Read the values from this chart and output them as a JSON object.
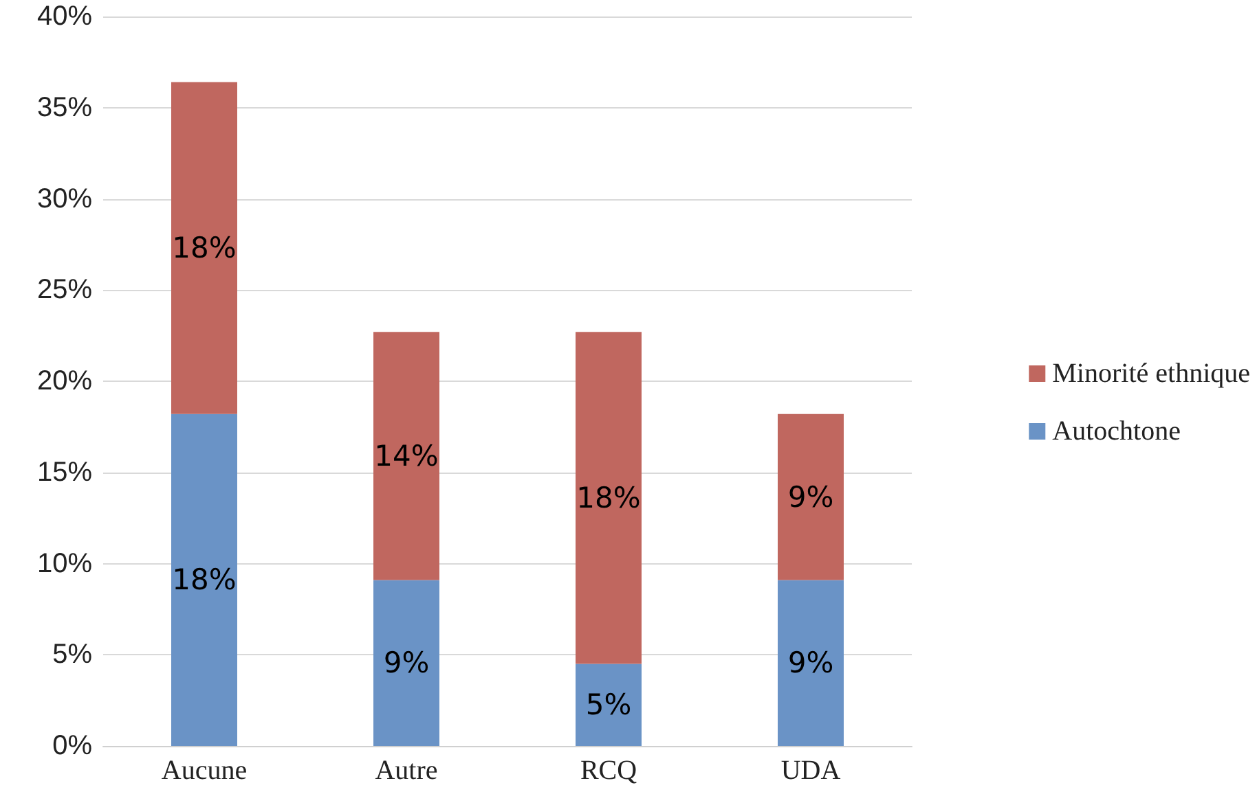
{
  "chart_data": {
    "type": "bar",
    "stacked": true,
    "categories": [
      "Aucune",
      "Autre",
      "RCQ",
      "UDA"
    ],
    "series": [
      {
        "name": "Autochtone",
        "color": "#6a93c6",
        "values": [
          18.2,
          9.1,
          4.5,
          9.1
        ],
        "value_labels": [
          "18%",
          "9%",
          "5%",
          "9%"
        ]
      },
      {
        "name": "Minorité ethnique",
        "color": "#c0675f",
        "values": [
          18.2,
          13.6,
          18.2,
          9.1
        ],
        "value_labels": [
          "18%",
          "14%",
          "18%",
          "9%"
        ]
      }
    ],
    "ylim": [
      0,
      40
    ],
    "yticks": [
      {
        "value": 0,
        "label": "0%"
      },
      {
        "value": 5,
        "label": "5%"
      },
      {
        "value": 10,
        "label": "10%"
      },
      {
        "value": 15,
        "label": "15%"
      },
      {
        "value": 20,
        "label": "20%"
      },
      {
        "value": 25,
        "label": "25%"
      },
      {
        "value": 30,
        "label": "30%"
      },
      {
        "value": 35,
        "label": "35%"
      },
      {
        "value": 40,
        "label": "40%"
      }
    ],
    "grid": "y",
    "legend": "right"
  }
}
